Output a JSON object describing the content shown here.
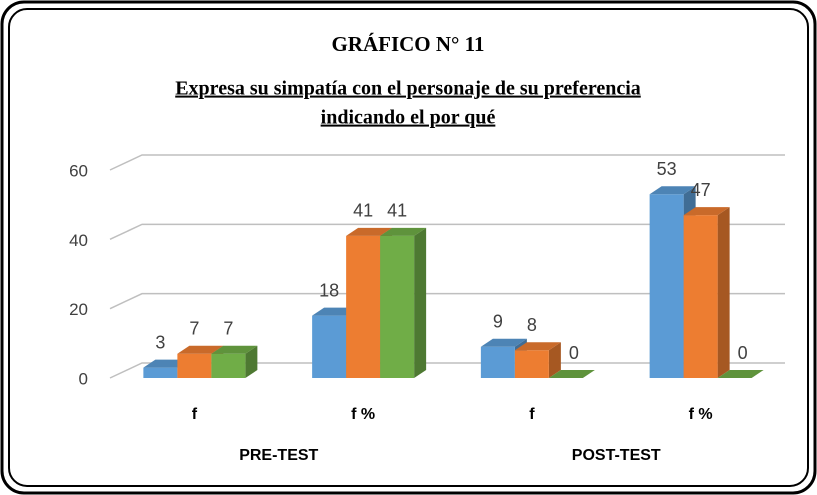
{
  "chart_data": {
    "type": "bar3d",
    "title": "GRÁFICO N° 11",
    "subtitle_lines": [
      "Expresa su simpatía con el personaje de su preferencia",
      "indicando  el por qué"
    ],
    "categories": [
      "f",
      "f %",
      "f",
      "f %"
    ],
    "groups": [
      "PRE-TEST",
      "POST-TEST"
    ],
    "series": [
      {
        "color": "#5b9bd5",
        "values": [
          3,
          18,
          9,
          53
        ]
      },
      {
        "color": "#ed7d31",
        "values": [
          7,
          41,
          8,
          47
        ]
      },
      {
        "color": "#70ad47",
        "values": [
          7,
          41,
          0,
          0
        ]
      }
    ],
    "ylim": [
      0,
      60
    ],
    "yticks": [
      0,
      20,
      40,
      60
    ],
    "grid": true
  }
}
